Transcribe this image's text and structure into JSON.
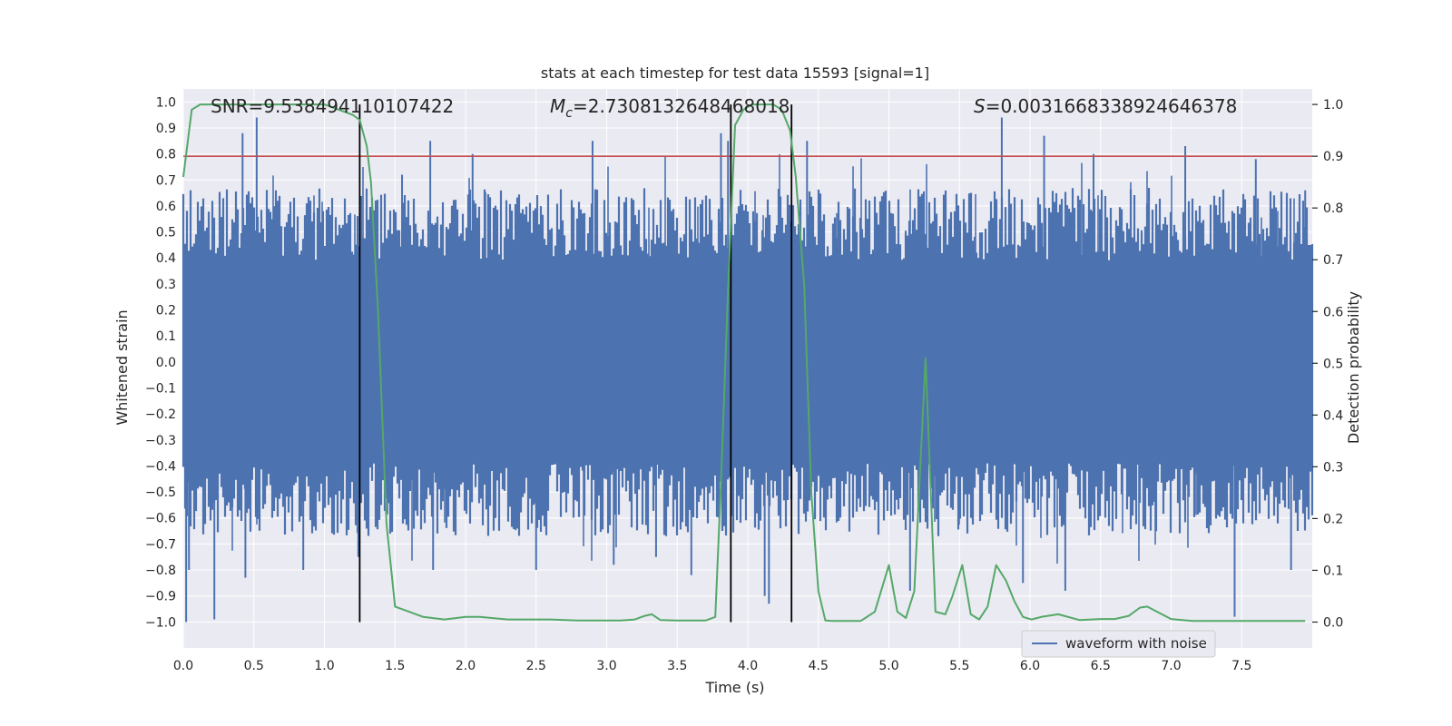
{
  "chart_data": {
    "type": "line",
    "title": "stats at each timestep for test data 15593 [signal=1]",
    "xlabel": "Time (s)",
    "ylabel_left": "Whitened strain",
    "ylabel_right": "Detection probability",
    "xlim": [
      0.0,
      8.0
    ],
    "ylim_left": [
      -1.1,
      1.05
    ],
    "ylim_right": [
      -0.05,
      1.03
    ],
    "x_ticks": [
      "0.0",
      "0.5",
      "1.0",
      "1.5",
      "2.0",
      "2.5",
      "3.0",
      "3.5",
      "4.0",
      "4.5",
      "5.0",
      "5.5",
      "6.0",
      "6.5",
      "7.0",
      "7.5"
    ],
    "y_ticks_left": [
      "1.0",
      "0.9",
      "0.8",
      "0.7",
      "0.6",
      "0.5",
      "0.4",
      "0.3",
      "0.2",
      "0.1",
      "0.0",
      "-0.1",
      "-0.2",
      "-0.3",
      "-0.4",
      "-0.5",
      "-0.6",
      "-0.7",
      "-0.8",
      "-0.9",
      "-1.0"
    ],
    "y_ticks_right": [
      "1.0",
      "0.9",
      "0.8",
      "0.7",
      "0.6",
      "0.5",
      "0.4",
      "0.3",
      "0.2",
      "0.1",
      "0.0"
    ],
    "annotations": {
      "snr": "SNR=9.538494110107422",
      "mc_symbol": "M",
      "mc_sub": "c",
      "mc_value": "=2.7308132648468018",
      "s_symbol": "S",
      "s_value": "=0.0031668338924646378"
    },
    "threshold": 0.9,
    "vertical_lines": [
      1.25,
      3.88,
      4.31
    ],
    "waveform_envelope": {
      "name": "waveform with noise",
      "color": "#4c72b0",
      "upper_base": 0.45,
      "lower_base": -0.45,
      "spikes": [
        {
          "t": 0.02,
          "v": -1.0
        },
        {
          "t": 0.04,
          "v": -0.8
        },
        {
          "t": 0.22,
          "v": -0.99
        },
        {
          "t": 0.42,
          "v": 0.88
        },
        {
          "t": 0.44,
          "v": -0.83
        },
        {
          "t": 0.52,
          "v": 0.94
        },
        {
          "t": 0.85,
          "v": -0.8
        },
        {
          "t": 1.24,
          "v": -0.75
        },
        {
          "t": 1.55,
          "v": 0.72
        },
        {
          "t": 1.75,
          "v": 0.85
        },
        {
          "t": 1.77,
          "v": -0.8
        },
        {
          "t": 2.05,
          "v": 0.8
        },
        {
          "t": 2.5,
          "v": -0.8
        },
        {
          "t": 2.9,
          "v": 0.85
        },
        {
          "t": 3.05,
          "v": -0.78
        },
        {
          "t": 3.35,
          "v": -0.75
        },
        {
          "t": 3.6,
          "v": -0.82
        },
        {
          "t": 3.81,
          "v": 0.88
        },
        {
          "t": 3.86,
          "v": 0.85
        },
        {
          "t": 4.12,
          "v": -0.9
        },
        {
          "t": 4.15,
          "v": -0.93
        },
        {
          "t": 4.42,
          "v": 0.85
        },
        {
          "t": 5.15,
          "v": -0.88
        },
        {
          "t": 5.8,
          "v": 0.94
        },
        {
          "t": 5.95,
          "v": -0.85
        },
        {
          "t": 6.1,
          "v": 0.87
        },
        {
          "t": 6.25,
          "v": -0.88
        },
        {
          "t": 6.45,
          "v": 0.8
        },
        {
          "t": 7.1,
          "v": 0.83
        },
        {
          "t": 7.45,
          "v": -0.98
        },
        {
          "t": 7.6,
          "v": 0.78
        },
        {
          "t": 7.85,
          "v": -0.8
        },
        {
          "t": 7.95,
          "v": 0.66
        }
      ]
    },
    "detection_probability": {
      "color": "#55a868",
      "x": [
        0.0,
        0.06,
        0.12,
        0.3,
        0.6,
        0.9,
        1.0,
        1.1,
        1.2,
        1.25,
        1.3,
        1.33,
        1.38,
        1.44,
        1.5,
        1.6,
        1.7,
        1.85,
        2.0,
        2.1,
        2.3,
        2.6,
        2.8,
        3.1,
        3.2,
        3.27,
        3.32,
        3.38,
        3.5,
        3.7,
        3.77,
        3.81,
        3.86,
        3.91,
        3.97,
        4.03,
        4.1,
        4.18,
        4.24,
        4.3,
        4.34,
        4.4,
        4.45,
        4.5,
        4.55,
        4.6,
        4.8,
        4.9,
        5.0,
        5.06,
        5.12,
        5.18,
        5.26,
        5.33,
        5.4,
        5.45,
        5.52,
        5.58,
        5.64,
        5.7,
        5.76,
        5.83,
        5.89,
        5.95,
        6.01,
        6.08,
        6.2,
        6.35,
        6.5,
        6.6,
        6.7,
        6.78,
        6.83,
        6.9,
        7.0,
        7.15,
        7.4,
        7.6,
        7.8,
        7.95
      ],
      "y": [
        0.86,
        0.99,
        1.0,
        1.0,
        1.0,
        1.0,
        1.0,
        0.99,
        0.98,
        0.97,
        0.92,
        0.85,
        0.6,
        0.19,
        0.03,
        0.02,
        0.01,
        0.005,
        0.01,
        0.01,
        0.005,
        0.005,
        0.003,
        0.003,
        0.005,
        0.012,
        0.015,
        0.004,
        0.003,
        0.003,
        0.01,
        0.27,
        0.64,
        0.96,
        0.99,
        1.0,
        1.0,
        1.0,
        0.99,
        0.95,
        0.86,
        0.65,
        0.25,
        0.06,
        0.003,
        0.002,
        0.002,
        0.02,
        0.11,
        0.02,
        0.008,
        0.06,
        0.51,
        0.02,
        0.015,
        0.05,
        0.11,
        0.015,
        0.005,
        0.03,
        0.11,
        0.08,
        0.04,
        0.01,
        0.005,
        0.01,
        0.015,
        0.004,
        0.006,
        0.006,
        0.012,
        0.028,
        0.03,
        0.02,
        0.006,
        0.002,
        0.002,
        0.002,
        0.002,
        0.002
      ]
    },
    "threshold_color": "#c44e52",
    "legend": {
      "label": "waveform with noise",
      "position": "lower-right"
    }
  }
}
